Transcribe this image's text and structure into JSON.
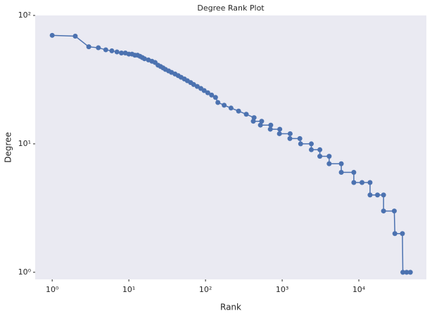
{
  "chart_data": {
    "type": "line",
    "title": "Degree Rank Plot",
    "xlabel": "Rank",
    "ylabel": "Degree",
    "log_x": true,
    "log_y": true,
    "grid": false,
    "xlim": [
      0.6,
      76000
    ],
    "ylim": [
      0.88,
      100
    ],
    "xticks": [
      {
        "value": 1,
        "label": "10⁰"
      },
      {
        "value": 10,
        "label": "10¹"
      },
      {
        "value": 100,
        "label": "10²"
      },
      {
        "value": 1000,
        "label": "10³"
      },
      {
        "value": 10000,
        "label": "10⁴"
      }
    ],
    "yticks": [
      {
        "value": 1,
        "label": "10⁰"
      },
      {
        "value": 10,
        "label": "10¹"
      },
      {
        "value": 100,
        "label": "10²"
      }
    ],
    "series": [
      {
        "color": "#4c72b0",
        "x": [
          1,
          2,
          3,
          4,
          5,
          6,
          7,
          8,
          9,
          10,
          11,
          12,
          13,
          14,
          15,
          16,
          18,
          20,
          22,
          24,
          26,
          28,
          30,
          33,
          36,
          40,
          44,
          48,
          53,
          58,
          64,
          70,
          78,
          87,
          96,
          107,
          120,
          135,
          145,
          175,
          215,
          270,
          340,
          430,
          420,
          540,
          520,
          710,
          700,
          930,
          920,
          1270,
          1260,
          1700,
          1740,
          2400,
          2400,
          3100,
          3100,
          4100,
          4100,
          5900,
          5900,
          8600,
          8600,
          11000,
          14000,
          14000,
          17500,
          21000,
          21000,
          29000,
          29500,
          37000,
          37500,
          42000,
          47000
        ],
        "values": [
          70,
          69,
          57,
          56,
          54,
          53,
          52,
          51,
          51,
          50,
          50,
          49,
          49,
          48,
          47,
          46,
          45,
          44,
          43,
          41,
          40,
          39,
          38,
          37,
          36,
          35,
          34,
          33,
          32,
          31,
          30,
          29,
          28,
          27,
          26,
          25,
          24,
          23,
          21,
          20,
          19,
          18,
          17,
          16,
          15,
          15,
          14,
          14,
          13,
          13,
          12,
          12,
          11,
          11,
          10,
          10,
          9,
          9,
          8,
          8,
          7,
          7,
          6,
          6,
          5,
          5,
          5,
          4,
          4,
          4,
          3,
          3,
          2,
          2,
          1,
          1,
          1
        ]
      }
    ]
  }
}
